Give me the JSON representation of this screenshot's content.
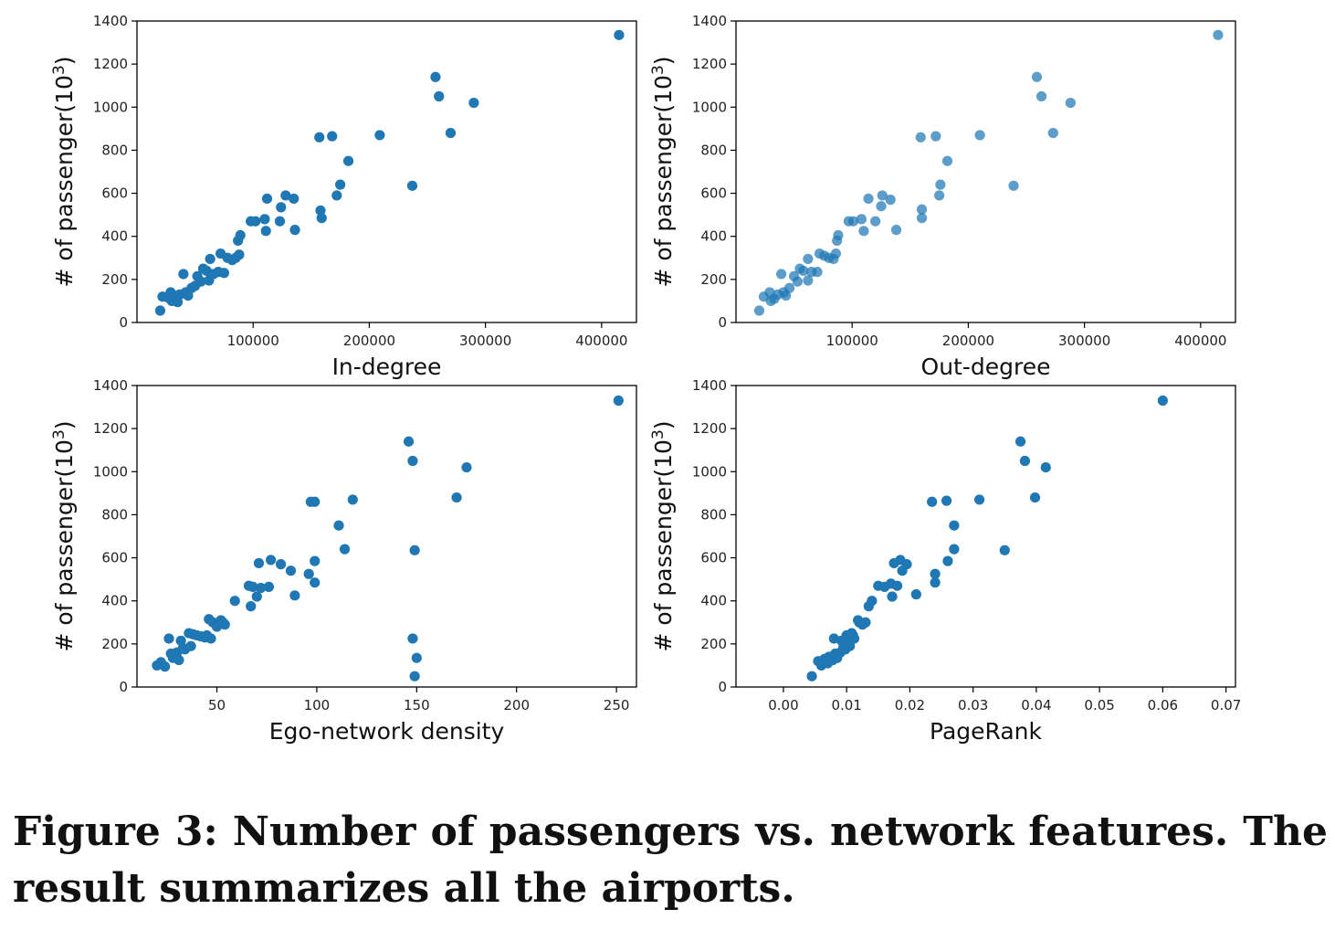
{
  "caption": "Figure 3: Number of passengers vs. network features. The result summarizes all the airports.",
  "chart_data": [
    {
      "type": "scatter",
      "xlabel": "In-degree",
      "ylabel": "# of passenger(10^3)",
      "xlim": [
        0,
        430000
      ],
      "ylim": [
        0,
        1400
      ],
      "xticks": [
        100000,
        200000,
        300000,
        400000
      ],
      "xtick_labels": [
        "100000",
        "200000",
        "300000",
        "400000"
      ],
      "yticks": [
        0,
        200,
        400,
        600,
        800,
        1000,
        1200,
        1400
      ],
      "ytick_labels": [
        "0",
        "200",
        "400",
        "600",
        "800",
        "1000",
        "1200",
        "1400"
      ],
      "color": "#1f77b4",
      "opacity": 1,
      "points": [
        [
          20000,
          55
        ],
        [
          22000,
          120
        ],
        [
          27000,
          115
        ],
        [
          29000,
          140
        ],
        [
          30000,
          100
        ],
        [
          32000,
          125
        ],
        [
          35000,
          95
        ],
        [
          37000,
          130
        ],
        [
          40000,
          225
        ],
        [
          42000,
          140
        ],
        [
          44000,
          125
        ],
        [
          47000,
          160
        ],
        [
          50000,
          170
        ],
        [
          52000,
          215
        ],
        [
          55000,
          190
        ],
        [
          57000,
          250
        ],
        [
          60000,
          240
        ],
        [
          62000,
          195
        ],
        [
          63000,
          295
        ],
        [
          66000,
          225
        ],
        [
          70000,
          235
        ],
        [
          72000,
          320
        ],
        [
          75000,
          230
        ],
        [
          78000,
          300
        ],
        [
          82000,
          290
        ],
        [
          85000,
          300
        ],
        [
          87000,
          380
        ],
        [
          88000,
          315
        ],
        [
          89000,
          405
        ],
        [
          98000,
          470
        ],
        [
          102000,
          470
        ],
        [
          110000,
          480
        ],
        [
          111000,
          425
        ],
        [
          112000,
          575
        ],
        [
          123000,
          470
        ],
        [
          124000,
          535
        ],
        [
          128000,
          590
        ],
        [
          135000,
          575
        ],
        [
          136000,
          430
        ],
        [
          157000,
          860
        ],
        [
          158000,
          520
        ],
        [
          159000,
          485
        ],
        [
          168000,
          865
        ],
        [
          172000,
          590
        ],
        [
          175000,
          640
        ],
        [
          182000,
          750
        ],
        [
          209000,
          870
        ],
        [
          237000,
          635
        ],
        [
          257000,
          1140
        ],
        [
          260000,
          1050
        ],
        [
          270000,
          880
        ],
        [
          290000,
          1020
        ],
        [
          415000,
          1335
        ]
      ]
    },
    {
      "type": "scatter",
      "xlabel": "Out-degree",
      "ylabel": "# of passenger(10^3)",
      "xlim": [
        0,
        430000
      ],
      "ylim": [
        0,
        1400
      ],
      "xticks": [
        100000,
        200000,
        300000,
        400000
      ],
      "xtick_labels": [
        "100000",
        "200000",
        "300000",
        "400000"
      ],
      "yticks": [
        0,
        200,
        400,
        600,
        800,
        1000,
        1200,
        1400
      ],
      "ytick_labels": [
        "0",
        "200",
        "400",
        "600",
        "800",
        "1000",
        "1200",
        "1400"
      ],
      "color": "#1f77b4",
      "opacity": 0.72,
      "points": [
        [
          20000,
          55
        ],
        [
          24000,
          120
        ],
        [
          29000,
          140
        ],
        [
          30000,
          100
        ],
        [
          33000,
          110
        ],
        [
          36000,
          130
        ],
        [
          39000,
          225
        ],
        [
          41000,
          140
        ],
        [
          43000,
          125
        ],
        [
          46000,
          160
        ],
        [
          50000,
          215
        ],
        [
          53000,
          190
        ],
        [
          55000,
          250
        ],
        [
          58000,
          240
        ],
        [
          62000,
          195
        ],
        [
          62000,
          295
        ],
        [
          65000,
          235
        ],
        [
          70000,
          235
        ],
        [
          72000,
          320
        ],
        [
          76000,
          310
        ],
        [
          80000,
          300
        ],
        [
          84000,
          295
        ],
        [
          86000,
          320
        ],
        [
          87000,
          380
        ],
        [
          88000,
          405
        ],
        [
          97000,
          470
        ],
        [
          101000,
          470
        ],
        [
          108000,
          480
        ],
        [
          110000,
          425
        ],
        [
          114000,
          575
        ],
        [
          120000,
          470
        ],
        [
          125000,
          540
        ],
        [
          126000,
          590
        ],
        [
          133000,
          570
        ],
        [
          138000,
          430
        ],
        [
          159000,
          860
        ],
        [
          160000,
          525
        ],
        [
          160000,
          485
        ],
        [
          172000,
          865
        ],
        [
          175000,
          590
        ],
        [
          176000,
          640
        ],
        [
          182000,
          750
        ],
        [
          210000,
          870
        ],
        [
          239000,
          635
        ],
        [
          259000,
          1140
        ],
        [
          263000,
          1050
        ],
        [
          273000,
          880
        ],
        [
          288000,
          1020
        ],
        [
          415000,
          1335
        ]
      ]
    },
    {
      "type": "scatter",
      "xlabel": "Ego-network density",
      "ylabel": "# of passenger(10^3)",
      "xlim": [
        10,
        260
      ],
      "ylim": [
        0,
        1400
      ],
      "xticks": [
        50,
        100,
        150,
        200,
        250
      ],
      "xtick_labels": [
        "50",
        "100",
        "150",
        "200",
        "250"
      ],
      "yticks": [
        0,
        200,
        400,
        600,
        800,
        1000,
        1200,
        1400
      ],
      "ytick_labels": [
        "0",
        "200",
        "400",
        "600",
        "800",
        "1000",
        "1200",
        "1400"
      ],
      "color": "#1f77b4",
      "opacity": 1,
      "points": [
        [
          20,
          100
        ],
        [
          22,
          115
        ],
        [
          24,
          95
        ],
        [
          26,
          225
        ],
        [
          27,
          155
        ],
        [
          28,
          135
        ],
        [
          30,
          160
        ],
        [
          31,
          125
        ],
        [
          32,
          215
        ],
        [
          33,
          180
        ],
        [
          34,
          175
        ],
        [
          36,
          250
        ],
        [
          37,
          190
        ],
        [
          38,
          245
        ],
        [
          40,
          240
        ],
        [
          42,
          235
        ],
        [
          44,
          230
        ],
        [
          45,
          240
        ],
        [
          46,
          315
        ],
        [
          47,
          225
        ],
        [
          48,
          300
        ],
        [
          50,
          280
        ],
        [
          52,
          310
        ],
        [
          53,
          300
        ],
        [
          54,
          290
        ],
        [
          59,
          400
        ],
        [
          66,
          470
        ],
        [
          67,
          375
        ],
        [
          68,
          465
        ],
        [
          70,
          420
        ],
        [
          71,
          575
        ],
        [
          72,
          460
        ],
        [
          76,
          465
        ],
        [
          77,
          590
        ],
        [
          82,
          570
        ],
        [
          87,
          540
        ],
        [
          89,
          425
        ],
        [
          96,
          525
        ],
        [
          97,
          860
        ],
        [
          99,
          860
        ],
        [
          99,
          485
        ],
        [
          99,
          585
        ],
        [
          111,
          750
        ],
        [
          114,
          640
        ],
        [
          118,
          870
        ],
        [
          146,
          1140
        ],
        [
          148,
          1050
        ],
        [
          148,
          225
        ],
        [
          149,
          635
        ],
        [
          149,
          50
        ],
        [
          150,
          135
        ],
        [
          170,
          880
        ],
        [
          175,
          1020
        ],
        [
          251,
          1330
        ]
      ]
    },
    {
      "type": "scatter",
      "xlabel": "PageRank",
      "ylabel": "# of passenger(10^3)",
      "xlim": [
        -0.0075,
        0.0715
      ],
      "ylim": [
        0,
        1400
      ],
      "xticks": [
        0.0,
        0.01,
        0.02,
        0.03,
        0.04,
        0.05,
        0.06,
        0.07
      ],
      "xtick_labels": [
        "0.00",
        "0.01",
        "0.02",
        "0.03",
        "0.04",
        "0.05",
        "0.06",
        "0.07"
      ],
      "yticks": [
        0,
        200,
        400,
        600,
        800,
        1000,
        1200,
        1400
      ],
      "ytick_labels": [
        "0",
        "200",
        "400",
        "600",
        "800",
        "1000",
        "1200",
        "1400"
      ],
      "color": "#1f77b4",
      "opacity": 1,
      "points": [
        [
          0.0045,
          50
        ],
        [
          0.0055,
          120
        ],
        [
          0.006,
          100
        ],
        [
          0.0065,
          130
        ],
        [
          0.007,
          110
        ],
        [
          0.0072,
          140
        ],
        [
          0.0078,
          125
        ],
        [
          0.008,
          225
        ],
        [
          0.0082,
          155
        ],
        [
          0.0085,
          135
        ],
        [
          0.009,
          160
        ],
        [
          0.0092,
          215
        ],
        [
          0.0095,
          185
        ],
        [
          0.0098,
          175
        ],
        [
          0.01,
          240
        ],
        [
          0.0102,
          230
        ],
        [
          0.0105,
          190
        ],
        [
          0.0108,
          250
        ],
        [
          0.011,
          240
        ],
        [
          0.0112,
          225
        ],
        [
          0.0118,
          310
        ],
        [
          0.012,
          300
        ],
        [
          0.0125,
          290
        ],
        [
          0.013,
          300
        ],
        [
          0.0135,
          375
        ],
        [
          0.014,
          400
        ],
        [
          0.015,
          470
        ],
        [
          0.016,
          465
        ],
        [
          0.017,
          480
        ],
        [
          0.0172,
          420
        ],
        [
          0.0175,
          575
        ],
        [
          0.018,
          470
        ],
        [
          0.0185,
          590
        ],
        [
          0.0188,
          540
        ],
        [
          0.0195,
          570
        ],
        [
          0.021,
          430
        ],
        [
          0.0235,
          860
        ],
        [
          0.024,
          525
        ],
        [
          0.024,
          485
        ],
        [
          0.0258,
          865
        ],
        [
          0.026,
          585
        ],
        [
          0.027,
          750
        ],
        [
          0.027,
          640
        ],
        [
          0.031,
          870
        ],
        [
          0.035,
          635
        ],
        [
          0.0375,
          1140
        ],
        [
          0.0382,
          1050
        ],
        [
          0.0398,
          880
        ],
        [
          0.0415,
          1020
        ],
        [
          0.06,
          1330
        ]
      ]
    }
  ]
}
